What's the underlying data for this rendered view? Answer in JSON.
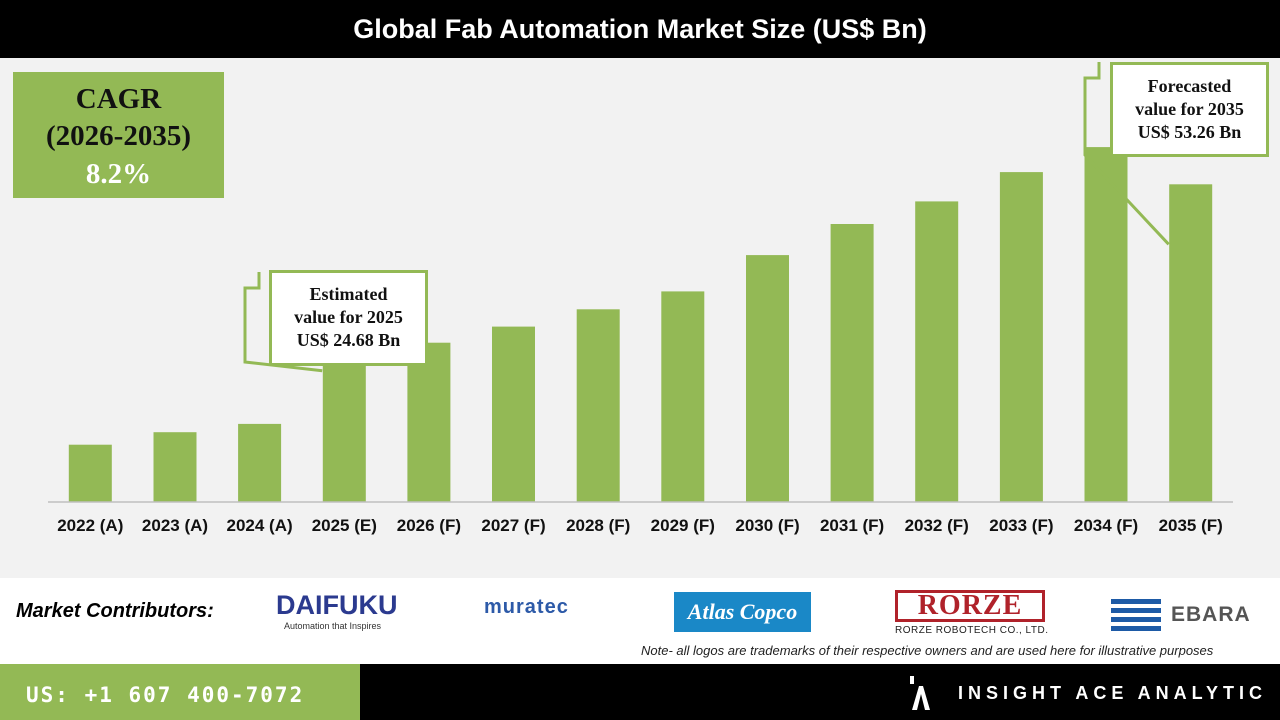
{
  "header": {
    "title": "Global Fab Automation Market Size (US$ Bn)"
  },
  "cagr": {
    "label": "CAGR",
    "period": "(2026-2035)",
    "value": "8.2%"
  },
  "callouts": {
    "estimated": {
      "line1": "Estimated",
      "line2": "value for 2025",
      "line3": "US$ 24.68 Bn"
    },
    "forecasted": {
      "line1": "Forecasted",
      "line2": "value for 2035",
      "line3": "US$ 53.26 Bn"
    }
  },
  "chart_data": {
    "type": "bar",
    "title": "Global Fab Automation Market Size (US$ Bn)",
    "categories": [
      "2022 (A)",
      "2023 (A)",
      "2024 (A)",
      "2025 (E)",
      "2026 (F)",
      "2027 (F)",
      "2028 (F)",
      "2029 (F)",
      "2030 (F)",
      "2031 (F)",
      "2032 (F)",
      "2033 (F)",
      "2034 (F)",
      "2035 (F)"
    ],
    "values": [
      9.6,
      11.7,
      13.1,
      24.68,
      26.7,
      29.4,
      32.3,
      35.3,
      41.4,
      46.6,
      50.4,
      55.3,
      59.5,
      53.26
    ],
    "ylim": [
      0,
      57
    ],
    "bar_color": "#93b955",
    "grid": false,
    "y_axis_shown": false
  },
  "footer": {
    "contributors_label": "Market Contributors:",
    "logos": {
      "daifuku": {
        "name": "DAIFUKU",
        "tagline": "Automation that Inspires"
      },
      "muratec": {
        "name": "muratec"
      },
      "atlas": {
        "name": "Atlas Copco"
      },
      "rorze": {
        "name": "RORZE",
        "sub": "RORZE ROBOTECH CO., LTD."
      },
      "ebara": {
        "name": "EBARA"
      }
    },
    "note": "Note- all logos are trademarks of their respective owners and are used here for illustrative purposes",
    "phone": "US: +1 607 400-7072",
    "brand": "INSIGHT ACE ANALYTIC"
  },
  "colors": {
    "accent": "#93b955",
    "dark": "#000000"
  }
}
